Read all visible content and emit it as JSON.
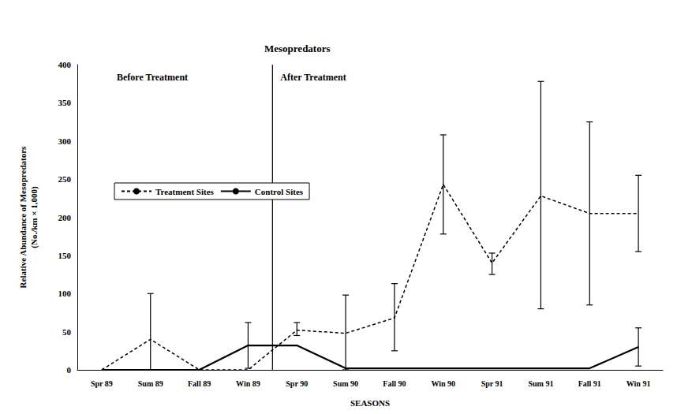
{
  "chart_data": {
    "type": "line",
    "title": "Mesopredators",
    "xlabel": "SEASONS",
    "ylabel": "Relative Abundance of Mesopredators (No./km × 1,000)",
    "categories": [
      "Spr 89",
      "Sum 89",
      "Fall 89",
      "Win 89",
      "Spr 90",
      "Sum 90",
      "Fall 90",
      "Win 90",
      "Spr 91",
      "Sum 91",
      "Fall 91",
      "Win 91"
    ],
    "series": [
      {
        "name": "Treatment Sites",
        "color": "#000000",
        "line_style": "dotted",
        "marker": "none",
        "values": [
          0,
          40,
          0,
          0,
          52,
          48,
          68,
          243,
          140,
          228,
          205,
          205
        ],
        "error_low": [
          null,
          0,
          null,
          null,
          45,
          0,
          25,
          178,
          125,
          80,
          85,
          155
        ],
        "error_high": [
          null,
          100,
          null,
          null,
          62,
          98,
          113,
          308,
          153,
          378,
          325,
          255
        ]
      },
      {
        "name": "Control Sites",
        "color": "#000000",
        "line_style": "solid",
        "marker": "none",
        "values": [
          0,
          0,
          0,
          32,
          32,
          2,
          2,
          2,
          2,
          2,
          2,
          30
        ],
        "error_low": [
          null,
          null,
          null,
          2,
          null,
          null,
          null,
          null,
          null,
          null,
          null,
          5
        ],
        "error_high": [
          null,
          null,
          null,
          62,
          null,
          null,
          null,
          null,
          null,
          null,
          null,
          55
        ]
      }
    ],
    "treatment_boundary": [
      "Win 89",
      "Spr 90"
    ],
    "annotations": [
      "Before Treatment",
      "After Treatment"
    ],
    "ylim": [
      0,
      400
    ],
    "yticks": [
      0,
      50,
      100,
      150,
      200,
      250,
      300,
      350,
      400
    ],
    "grid": false,
    "legend": "left"
  }
}
